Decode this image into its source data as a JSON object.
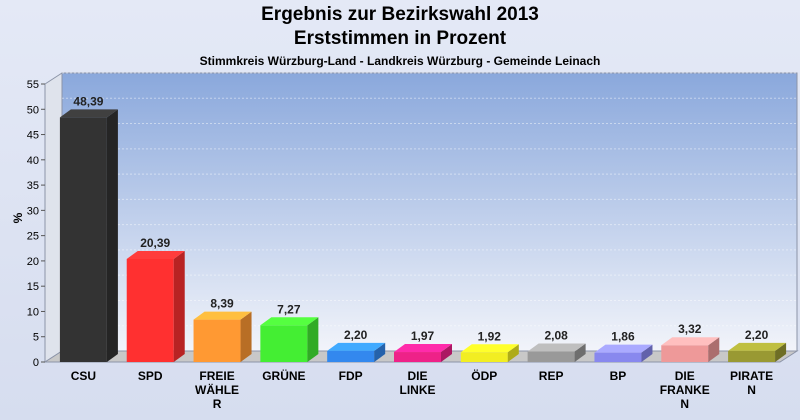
{
  "chart_data": {
    "type": "bar",
    "title": "Ergebnis zur Bezirkswahl 2013",
    "title2": "Erststimmen in Prozent",
    "subtitle": "Stimmkreis Würzburg-Land - Landkreis Würzburg - Gemeinde Leinach",
    "ylabel": "%",
    "ylim": [
      0,
      55
    ],
    "yticks": [
      0,
      5,
      10,
      15,
      20,
      25,
      30,
      35,
      40,
      45,
      50,
      55
    ],
    "categories": [
      [
        "CSU"
      ],
      [
        "SPD"
      ],
      [
        "FREIE",
        "WÄHLE",
        "R"
      ],
      [
        "GRÜNE"
      ],
      [
        "FDP"
      ],
      [
        "DIE",
        "LINKE"
      ],
      [
        "ÖDP"
      ],
      [
        "REP"
      ],
      [
        "BP"
      ],
      [
        "DIE",
        "FRANKE",
        "N"
      ],
      [
        "PIRATE",
        "N"
      ]
    ],
    "values": [
      48.39,
      20.39,
      8.39,
      7.27,
      2.2,
      1.97,
      1.92,
      2.08,
      1.86,
      3.32,
      2.2
    ],
    "value_labels": [
      "48,39",
      "20,39",
      "8,39",
      "7,27",
      "2,20",
      "1,97",
      "1,92",
      "2,08",
      "1,86",
      "3,32",
      "2,20"
    ],
    "colors": [
      "#333333",
      "#ff3030",
      "#ff9933",
      "#44ee33",
      "#3388ee",
      "#ee2288",
      "#f2ee22",
      "#999999",
      "#8888ee",
      "#ee9999",
      "#999933"
    ]
  }
}
